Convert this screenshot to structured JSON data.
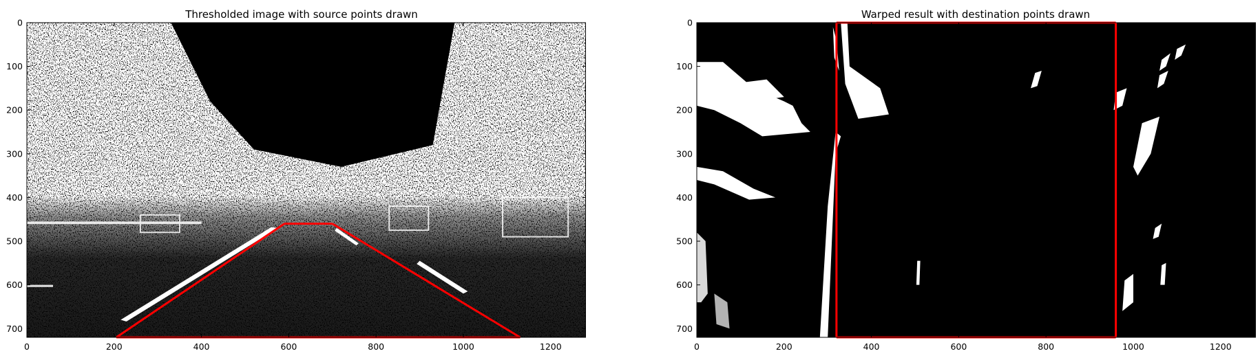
{
  "chart_data": [
    {
      "type": "image",
      "title": "Thresholded image with source points drawn",
      "image_size": [
        1280,
        720
      ],
      "xlim": [
        0,
        1280
      ],
      "ylim": [
        720,
        0
      ],
      "xticks": [
        0,
        200,
        400,
        600,
        800,
        1000,
        1200
      ],
      "yticks": [
        0,
        100,
        200,
        300,
        400,
        500,
        600,
        700
      ],
      "overlay": {
        "color": "#ff0000",
        "polygon": [
          [
            205,
            720
          ],
          [
            590,
            460
          ],
          [
            700,
            460
          ],
          [
            1130,
            720
          ]
        ]
      }
    },
    {
      "type": "image",
      "title": "Warped result with destination points drawn",
      "image_size": [
        1280,
        720
      ],
      "xlim": [
        0,
        1280
      ],
      "ylim": [
        720,
        0
      ],
      "xticks": [
        0,
        200,
        400,
        600,
        800,
        1000,
        1200
      ],
      "yticks": [
        0,
        100,
        200,
        300,
        400,
        500,
        600,
        700
      ],
      "overlay": {
        "color": "#ff0000",
        "polygon": [
          [
            320,
            720
          ],
          [
            320,
            0
          ],
          [
            960,
            0
          ],
          [
            960,
            720
          ]
        ]
      }
    }
  ]
}
